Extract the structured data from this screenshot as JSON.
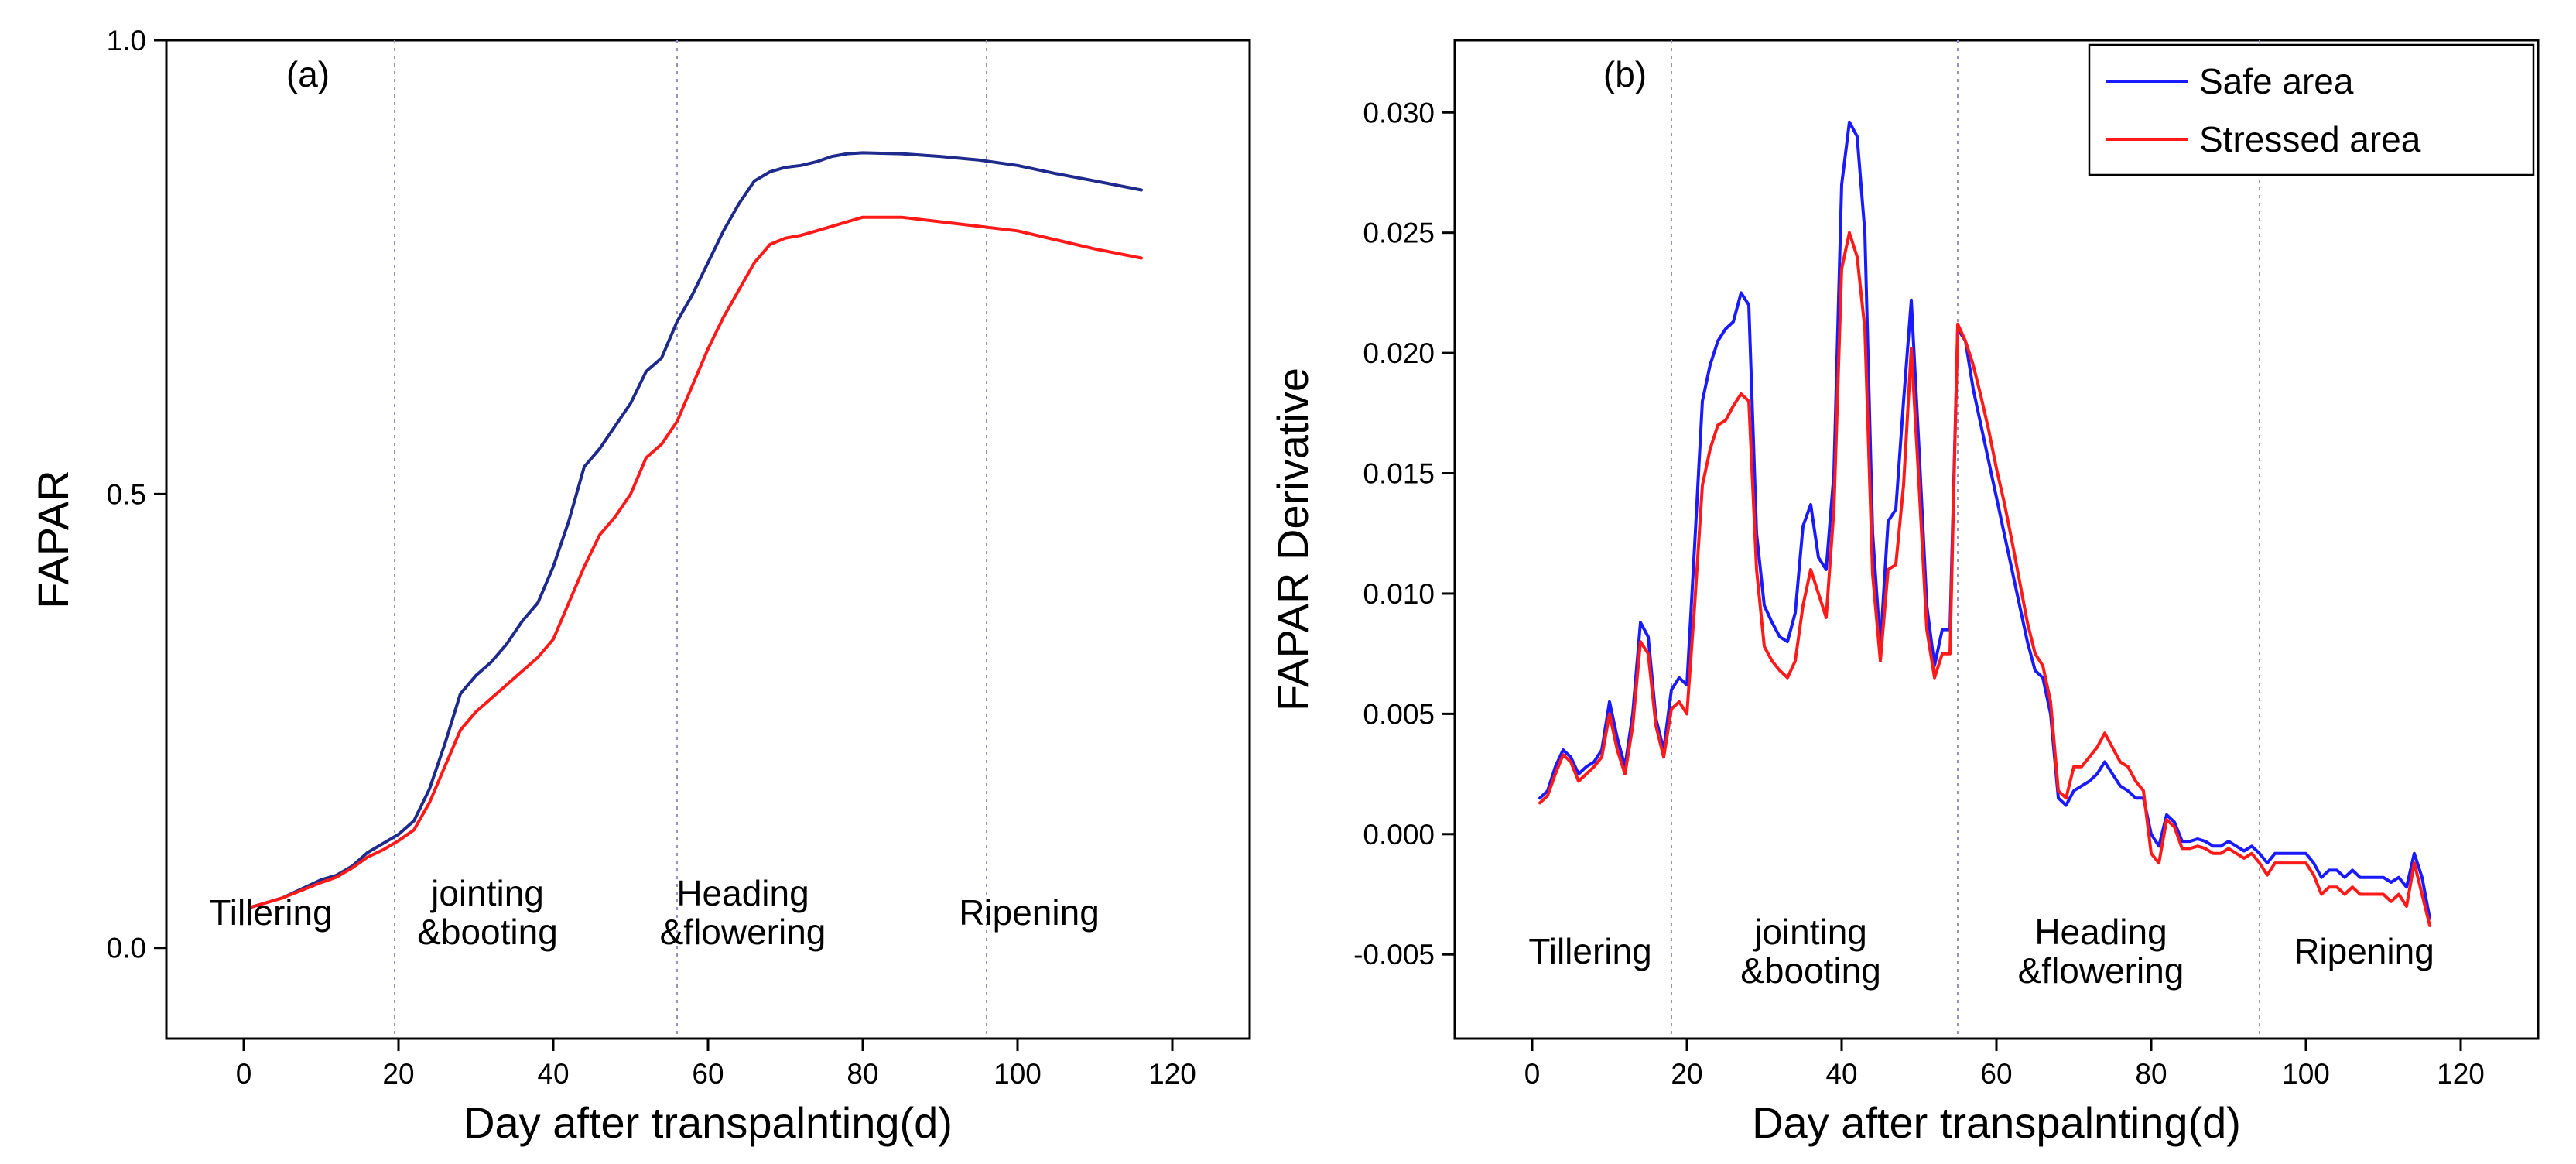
{
  "chart_data": [
    {
      "type": "line",
      "panel_label": "(a)",
      "title": "",
      "xlabel": "Day after transpalnting(d)",
      "ylabel": "FAPAR",
      "xlim": [
        -10,
        130
      ],
      "ylim": [
        -0.1,
        1.0
      ],
      "xticks": [
        0,
        20,
        40,
        60,
        80,
        100,
        120
      ],
      "yticks": [
        0.0,
        0.5,
        1.0
      ],
      "ytick_labels": [
        "0.0",
        "0.5",
        "1.0"
      ],
      "grid": false,
      "stage_boundaries": [
        19.5,
        56,
        96
      ],
      "stages": [
        {
          "lines": [
            "Tillering"
          ],
          "x": 3.5
        },
        {
          "lines": [
            "jointing",
            "&booting"
          ],
          "x": 31.5
        },
        {
          "lines": [
            "Heading",
            "&flowering"
          ],
          "x": 64.5
        },
        {
          "lines": [
            "Ripening"
          ],
          "x": 101.5
        }
      ],
      "series": [
        {
          "name": "Safe area",
          "color": "#1e2a8c",
          "x": [
            1,
            5,
            10,
            12,
            14,
            16,
            18,
            20,
            22,
            24,
            26,
            28,
            30,
            32,
            34,
            36,
            38,
            40,
            42,
            44,
            46,
            48,
            50,
            52,
            54,
            56,
            58,
            60,
            62,
            64,
            66,
            68,
            70,
            72,
            74,
            76,
            78,
            80,
            85,
            90,
            95,
            100,
            105,
            110,
            116
          ],
          "y": [
            0.045,
            0.055,
            0.075,
            0.08,
            0.09,
            0.105,
            0.115,
            0.125,
            0.14,
            0.175,
            0.225,
            0.28,
            0.3,
            0.315,
            0.335,
            0.36,
            0.38,
            0.42,
            0.47,
            0.53,
            0.55,
            0.575,
            0.6,
            0.635,
            0.65,
            0.69,
            0.72,
            0.755,
            0.79,
            0.82,
            0.845,
            0.855,
            0.86,
            0.862,
            0.866,
            0.872,
            0.875,
            0.876,
            0.875,
            0.872,
            0.868,
            0.862,
            0.853,
            0.845,
            0.835
          ]
        },
        {
          "name": "Stressed area",
          "color": "#ff1a1a",
          "x": [
            1,
            5,
            10,
            12,
            14,
            16,
            18,
            20,
            22,
            24,
            26,
            28,
            30,
            32,
            34,
            36,
            38,
            40,
            42,
            44,
            46,
            48,
            50,
            52,
            54,
            56,
            58,
            60,
            62,
            64,
            66,
            68,
            70,
            72,
            74,
            76,
            78,
            80,
            85,
            90,
            95,
            100,
            105,
            110,
            116
          ],
          "y": [
            0.045,
            0.055,
            0.072,
            0.078,
            0.088,
            0.1,
            0.108,
            0.118,
            0.13,
            0.16,
            0.2,
            0.24,
            0.26,
            0.275,
            0.29,
            0.305,
            0.32,
            0.34,
            0.38,
            0.42,
            0.455,
            0.475,
            0.5,
            0.54,
            0.555,
            0.58,
            0.62,
            0.66,
            0.695,
            0.725,
            0.755,
            0.775,
            0.782,
            0.785,
            0.79,
            0.795,
            0.8,
            0.805,
            0.805,
            0.8,
            0.795,
            0.79,
            0.78,
            0.77,
            0.76
          ]
        }
      ]
    },
    {
      "type": "line",
      "panel_label": "(b)",
      "title": "",
      "xlabel": "Day after transpalnting(d)",
      "ylabel": "FAPAR Derivative",
      "xlim": [
        -10,
        130
      ],
      "ylim": [
        -0.0085,
        0.033
      ],
      "xticks": [
        0,
        20,
        40,
        60,
        80,
        100,
        120
      ],
      "yticks": [
        -0.005,
        0.0,
        0.005,
        0.01,
        0.015,
        0.02,
        0.025,
        0.03
      ],
      "ytick_labels": [
        "-0.005",
        "0.000",
        "0.005",
        "0.010",
        "0.015",
        "0.020",
        "0.025",
        "0.030"
      ],
      "grid": false,
      "legend": {
        "position": "top-right",
        "entries": [
          "Safe area",
          "Stressed area"
        ]
      },
      "stage_boundaries": [
        18,
        55,
        94
      ],
      "stages": [
        {
          "lines": [
            "Tillering"
          ],
          "x": 7.5
        },
        {
          "lines": [
            "jointing",
            "&booting"
          ],
          "x": 36
        },
        {
          "lines": [
            "Heading",
            "&flowering"
          ],
          "x": 73.5
        },
        {
          "lines": [
            "Ripening"
          ],
          "x": 107.5
        }
      ],
      "series": [
        {
          "name": "Safe area",
          "color": "#1a1aff",
          "x": [
            1,
            2,
            3,
            4,
            5,
            6,
            7,
            8,
            9,
            10,
            11,
            12,
            13,
            14,
            15,
            16,
            17,
            18,
            19,
            20,
            21,
            22,
            23,
            24,
            25,
            26,
            27,
            28,
            29,
            30,
            31,
            32,
            33,
            34,
            35,
            36,
            37,
            38,
            39,
            40,
            41,
            42,
            43,
            44,
            45,
            46,
            47,
            48,
            49,
            50,
            51,
            52,
            53,
            54,
            55,
            56,
            57,
            58,
            59,
            60,
            61,
            62,
            63,
            64,
            65,
            66,
            67,
            68,
            69,
            70,
            71,
            72,
            73,
            74,
            75,
            76,
            77,
            78,
            79,
            80,
            81,
            82,
            83,
            84,
            85,
            86,
            87,
            88,
            89,
            90,
            91,
            92,
            93,
            94,
            95,
            96,
            97,
            98,
            99,
            100,
            101,
            102,
            103,
            104,
            105,
            106,
            107,
            108,
            109,
            110,
            111,
            112,
            113,
            114,
            115,
            116
          ],
          "y": [
            0.0015,
            0.0018,
            0.0028,
            0.0035,
            0.0032,
            0.0025,
            0.0028,
            0.003,
            0.0035,
            0.0055,
            0.004,
            0.0028,
            0.005,
            0.0088,
            0.0082,
            0.0048,
            0.0035,
            0.006,
            0.0065,
            0.0062,
            0.012,
            0.018,
            0.0195,
            0.0205,
            0.021,
            0.0213,
            0.0225,
            0.022,
            0.0125,
            0.0095,
            0.0088,
            0.0082,
            0.008,
            0.0092,
            0.0128,
            0.0137,
            0.0115,
            0.011,
            0.015,
            0.027,
            0.0296,
            0.029,
            0.025,
            0.0125,
            0.0078,
            0.013,
            0.0135,
            0.018,
            0.0222,
            0.016,
            0.0095,
            0.007,
            0.0085,
            0.0085,
            0.021,
            0.0205,
            0.0185,
            0.017,
            0.0155,
            0.014,
            0.0125,
            0.011,
            0.0095,
            0.008,
            0.0068,
            0.0065,
            0.005,
            0.0015,
            0.0012,
            0.0018,
            0.002,
            0.0022,
            0.0025,
            0.003,
            0.0025,
            0.002,
            0.0018,
            0.0015,
            0.0015,
            0.0,
            -0.0005,
            0.0008,
            0.0005,
            -0.0003,
            -0.0003,
            -0.0002,
            -0.0003,
            -0.0005,
            -0.0005,
            -0.0003,
            -0.0005,
            -0.0007,
            -0.0005,
            -0.0008,
            -0.0012,
            -0.0008,
            -0.0008,
            -0.0008,
            -0.0008,
            -0.0008,
            -0.0012,
            -0.0018,
            -0.0015,
            -0.0015,
            -0.0018,
            -0.0015,
            -0.0018,
            -0.0018,
            -0.0018,
            -0.0018,
            -0.002,
            -0.0018,
            -0.0022,
            -0.0008,
            -0.0018,
            -0.0035
          ]
        },
        {
          "name": "Stressed area",
          "color": "#ff1a1a",
          "x": [
            1,
            2,
            3,
            4,
            5,
            6,
            7,
            8,
            9,
            10,
            11,
            12,
            13,
            14,
            15,
            16,
            17,
            18,
            19,
            20,
            21,
            22,
            23,
            24,
            25,
            26,
            27,
            28,
            29,
            30,
            31,
            32,
            33,
            34,
            35,
            36,
            37,
            38,
            39,
            40,
            41,
            42,
            43,
            44,
            45,
            46,
            47,
            48,
            49,
            50,
            51,
            52,
            53,
            54,
            55,
            56,
            57,
            58,
            59,
            60,
            61,
            62,
            63,
            64,
            65,
            66,
            67,
            68,
            69,
            70,
            71,
            72,
            73,
            74,
            75,
            76,
            77,
            78,
            79,
            80,
            81,
            82,
            83,
            84,
            85,
            86,
            87,
            88,
            89,
            90,
            91,
            92,
            93,
            94,
            95,
            96,
            97,
            98,
            99,
            100,
            101,
            102,
            103,
            104,
            105,
            106,
            107,
            108,
            109,
            110,
            111,
            112,
            113,
            114,
            115,
            116
          ],
          "y": [
            0.0013,
            0.0016,
            0.0025,
            0.0033,
            0.003,
            0.0022,
            0.0025,
            0.0028,
            0.0032,
            0.005,
            0.0035,
            0.0025,
            0.0045,
            0.008,
            0.0075,
            0.0045,
            0.0032,
            0.0052,
            0.0055,
            0.005,
            0.0095,
            0.0145,
            0.016,
            0.017,
            0.0172,
            0.0178,
            0.0183,
            0.018,
            0.011,
            0.0078,
            0.0072,
            0.0068,
            0.0065,
            0.0072,
            0.0095,
            0.011,
            0.01,
            0.009,
            0.0135,
            0.0235,
            0.025,
            0.024,
            0.021,
            0.0108,
            0.0072,
            0.011,
            0.0112,
            0.0145,
            0.0202,
            0.0145,
            0.0085,
            0.0065,
            0.0075,
            0.0075,
            0.0212,
            0.0205,
            0.0195,
            0.0182,
            0.0168,
            0.0152,
            0.0138,
            0.0122,
            0.0105,
            0.0088,
            0.0075,
            0.007,
            0.0055,
            0.0018,
            0.0015,
            0.0028,
            0.0028,
            0.0032,
            0.0036,
            0.0042,
            0.0036,
            0.003,
            0.0028,
            0.0022,
            0.0018,
            -0.0008,
            -0.0012,
            0.0006,
            0.0003,
            -0.0006,
            -0.0006,
            -0.0005,
            -0.0006,
            -0.0008,
            -0.0008,
            -0.0006,
            -0.0008,
            -0.001,
            -0.0008,
            -0.0012,
            -0.0017,
            -0.0012,
            -0.0012,
            -0.0012,
            -0.0012,
            -0.0012,
            -0.0017,
            -0.0025,
            -0.0022,
            -0.0022,
            -0.0025,
            -0.0022,
            -0.0025,
            -0.0025,
            -0.0025,
            -0.0025,
            -0.0028,
            -0.0025,
            -0.003,
            -0.0012,
            -0.0025,
            -0.0038
          ]
        }
      ]
    }
  ]
}
